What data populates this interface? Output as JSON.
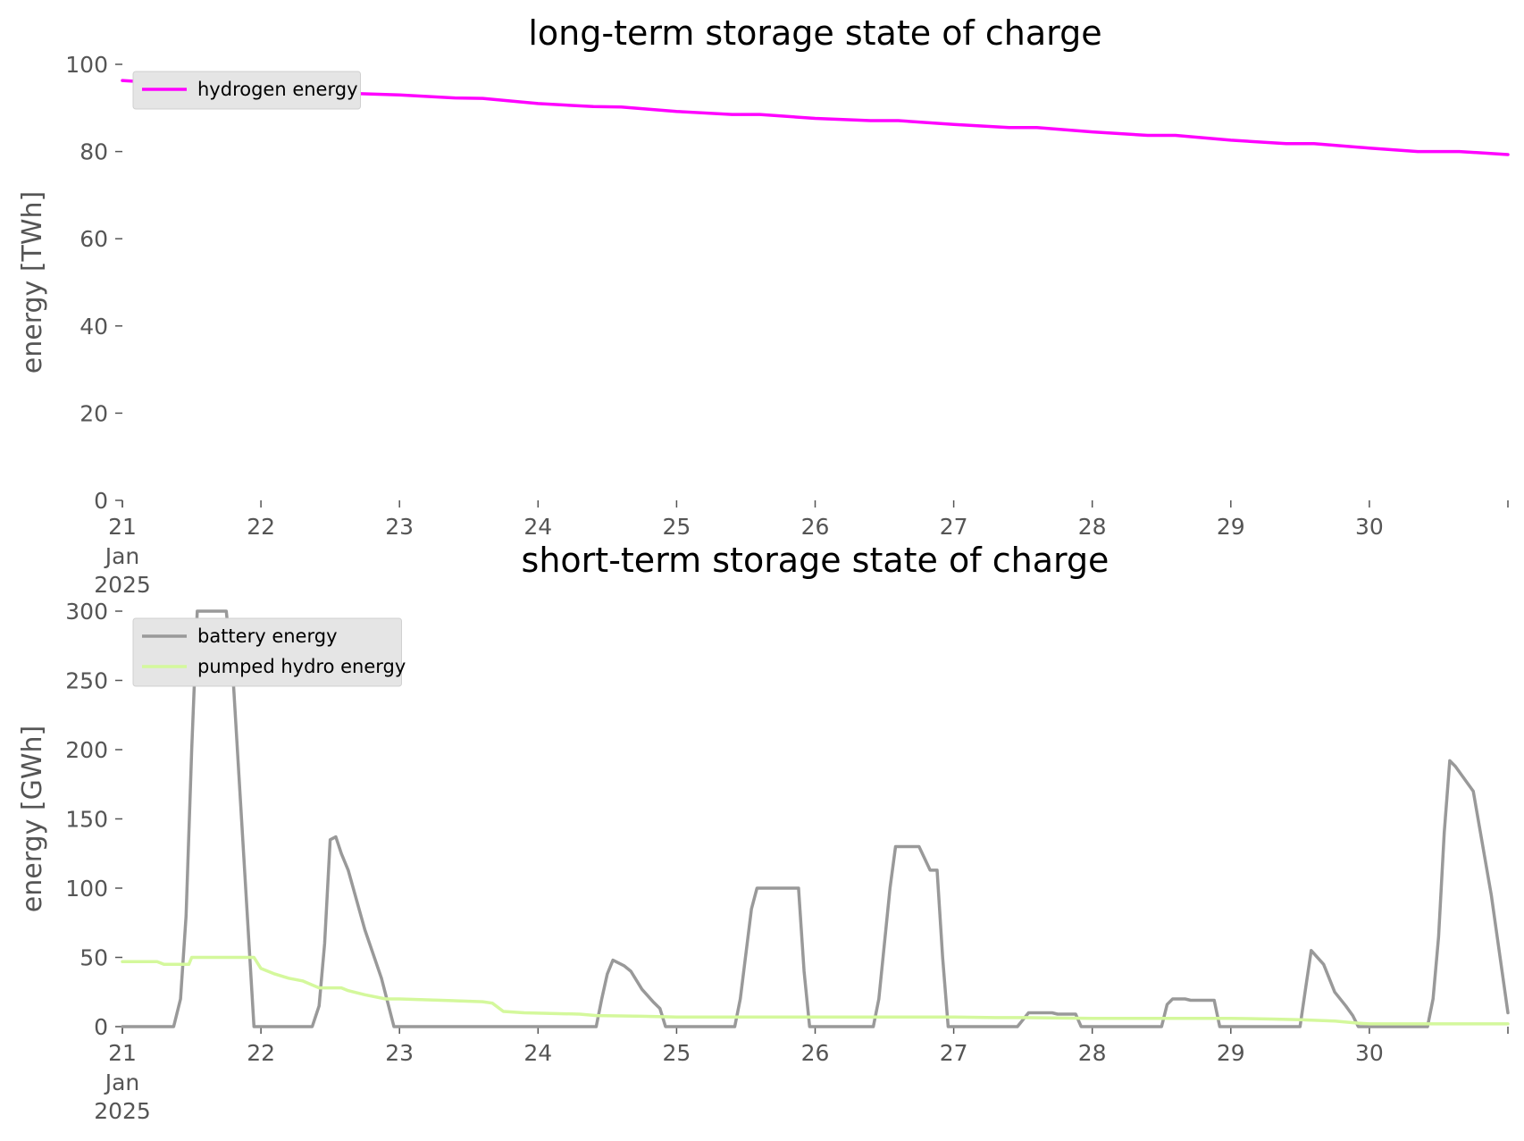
{
  "colors": {
    "hydrogen": "#ff00ff",
    "battery": "#999999",
    "pumped_hydro": "#d4f89c",
    "axis_text": "#555555",
    "legend_bg": "#e5e5e5"
  },
  "chart_data": [
    {
      "type": "line",
      "title": "long-term storage state of charge",
      "ylabel": "energy [TWh]",
      "xlim": [
        21,
        31
      ],
      "ylim": [
        0,
        100
      ],
      "yticks": [
        0,
        20,
        40,
        60,
        80,
        100
      ],
      "ytick_labels": [
        "0",
        "20",
        "40",
        "60",
        "80",
        "100"
      ],
      "xticks": [
        21,
        22,
        23,
        24,
        25,
        26,
        27,
        28,
        29,
        30
      ],
      "xtick_labels": [
        "21",
        "22",
        "23",
        "24",
        "25",
        "26",
        "27",
        "28",
        "29",
        "30"
      ],
      "xtick_first_extra": [
        "Jan",
        "2025"
      ],
      "legend_position": "top-left",
      "series": [
        {
          "name": "hydrogen energy",
          "color": "#ff00ff",
          "x": [
            21,
            21.5,
            22,
            22.5,
            23,
            23.4,
            23.6,
            24,
            24.4,
            24.6,
            25,
            25.4,
            25.6,
            26,
            26.4,
            26.6,
            27,
            27.4,
            27.6,
            28,
            28.4,
            28.6,
            29,
            29.4,
            29.6,
            30,
            30.35,
            30.65,
            31
          ],
          "y": [
            96.3,
            95.3,
            94.3,
            93.5,
            93.0,
            92.3,
            92.2,
            91.0,
            90.3,
            90.2,
            89.2,
            88.5,
            88.5,
            87.6,
            87.1,
            87.1,
            86.2,
            85.5,
            85.5,
            84.5,
            83.7,
            83.7,
            82.6,
            81.8,
            81.8,
            80.8,
            80.0,
            80.0,
            79.3
          ]
        }
      ]
    },
    {
      "type": "line",
      "title": "short-term storage state of charge",
      "ylabel": "energy [GWh]",
      "xlim": [
        21,
        31
      ],
      "ylim": [
        0,
        300
      ],
      "yticks": [
        0,
        50,
        100,
        150,
        200,
        250,
        300
      ],
      "ytick_labels": [
        "0",
        "50",
        "100",
        "150",
        "200",
        "250",
        "300"
      ],
      "xticks": [
        21,
        22,
        23,
        24,
        25,
        26,
        27,
        28,
        29,
        30
      ],
      "xtick_labels": [
        "21",
        "22",
        "23",
        "24",
        "25",
        "26",
        "27",
        "28",
        "29",
        "30"
      ],
      "xtick_first_extra": [
        "Jan",
        "2025"
      ],
      "legend_position": "top-left",
      "series": [
        {
          "name": "battery energy",
          "color": "#999999",
          "x": [
            21,
            21.37,
            21.42,
            21.46,
            21.5,
            21.54,
            21.58,
            21.75,
            21.8,
            21.95,
            21.96,
            22.37,
            22.42,
            22.46,
            22.5,
            22.54,
            22.58,
            22.63,
            22.75,
            22.87,
            22.96,
            23.0,
            24.42,
            24.46,
            24.5,
            24.54,
            24.58,
            24.62,
            24.67,
            24.75,
            24.83,
            24.88,
            24.92,
            25.42,
            25.46,
            25.54,
            25.58,
            25.62,
            25.75,
            25.88,
            25.92,
            25.96,
            26.42,
            26.46,
            26.54,
            26.58,
            26.62,
            26.75,
            26.83,
            26.85,
            26.88,
            26.92,
            26.96,
            27.46,
            27.54,
            27.58,
            27.67,
            27.71,
            27.75,
            27.83,
            27.88,
            27.92,
            28.42,
            28.5,
            28.54,
            28.58,
            28.67,
            28.71,
            28.75,
            28.83,
            28.88,
            28.92,
            29.42,
            29.5,
            29.54,
            29.58,
            29.67,
            29.75,
            29.83,
            29.88,
            29.92,
            29.96,
            30.38,
            30.42,
            30.46,
            30.5,
            30.54,
            30.58,
            30.62,
            30.75,
            30.88,
            31.0
          ],
          "y": [
            0,
            0,
            20,
            80,
            200,
            300,
            300,
            300,
            250,
            0,
            0,
            0,
            15,
            60,
            135,
            137,
            125,
            113,
            70,
            35,
            0,
            0,
            0,
            20,
            38,
            48,
            46,
            44,
            40,
            27,
            18,
            13,
            0,
            0,
            20,
            85,
            100,
            100,
            100,
            100,
            40,
            0,
            0,
            20,
            100,
            130,
            130,
            130,
            113,
            113,
            113,
            50,
            0,
            0,
            10,
            10,
            10,
            10,
            9,
            9,
            9,
            0,
            0,
            0,
            16,
            20,
            20,
            19,
            19,
            19,
            19,
            0,
            0,
            0,
            28,
            55,
            45,
            25,
            15,
            8,
            0,
            0,
            0,
            0,
            20,
            65,
            140,
            192,
            188,
            170,
            95,
            10
          ]
        },
        {
          "name": "pumped hydro energy",
          "color": "#d4f89c",
          "x": [
            21,
            21.25,
            21.3,
            21.48,
            21.5,
            21.95,
            22.0,
            22.1,
            22.2,
            22.3,
            22.42,
            22.58,
            22.63,
            22.75,
            22.9,
            23.0,
            23.3,
            23.6,
            23.67,
            23.75,
            23.9,
            24.3,
            24.42,
            24.75,
            25.0,
            25.5,
            26.0,
            26.5,
            27.0,
            27.3,
            27.5,
            28.0,
            28.5,
            29.0,
            29.3,
            29.5,
            29.75,
            29.92,
            30.0,
            31.0
          ],
          "y": [
            47,
            47,
            45,
            45,
            50,
            50,
            42,
            38,
            35,
            33,
            28,
            28,
            26,
            23,
            20,
            20,
            19,
            18,
            17,
            11,
            10,
            9,
            8,
            7.5,
            7,
            7,
            7,
            7,
            7,
            6.5,
            6.5,
            6,
            6,
            6,
            5.5,
            5,
            4,
            2.5,
            2,
            2
          ]
        }
      ]
    }
  ]
}
